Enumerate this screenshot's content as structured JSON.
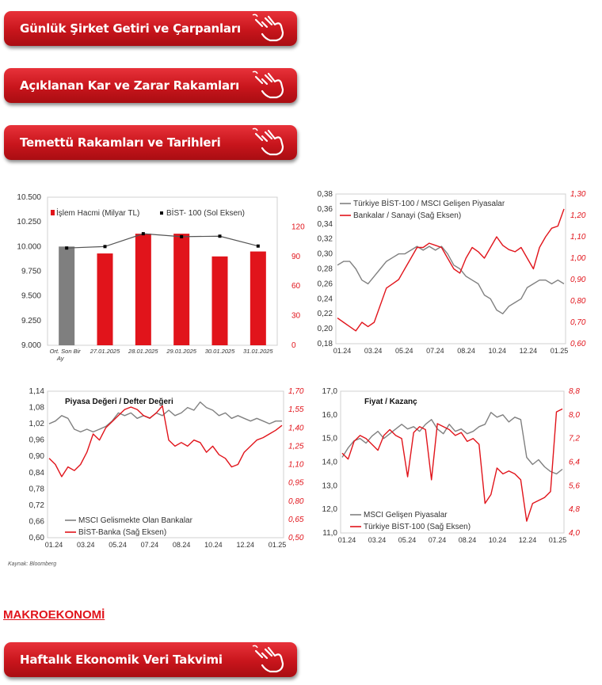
{
  "buttons": [
    {
      "label": "Günlük Şirket Getiri ve Çarpanları",
      "icon": "pointing-hand-icon"
    },
    {
      "label": "Açıklanan Kar ve Zarar Rakamları",
      "icon": "pointing-hand-icon"
    },
    {
      "label": "Temettü Rakamları ve Tarihleri",
      "icon": "pointing-hand-icon"
    },
    {
      "label": "Haftalık Ekonomik Veri Takvimi",
      "icon": "pointing-hand-icon"
    }
  ],
  "section_title": "MAKROEKONOMİ",
  "source_note": "Kaynak: Bloomberg",
  "colors": {
    "red": "#e1141b",
    "gray": "#808080",
    "dark": "#333333"
  },
  "chart_data": [
    {
      "type": "bar",
      "categories": [
        "Ort. Son Bir Ay",
        "27.01.2025",
        "28.01.2025",
        "29.01.2025",
        "30.01.2025",
        "31.01.2025"
      ],
      "series": [
        {
          "name": "İşlem Hacmi (Milyar TL)",
          "axis": "right",
          "values": [
            100,
            93,
            113,
            113,
            90,
            95
          ]
        },
        {
          "name": "BİST- 100 (Sol Eksen)",
          "axis": "left",
          "values": [
            9985,
            10000,
            10130,
            10100,
            10105,
            10005
          ]
        }
      ],
      "ylim_left": [
        9000,
        10500
      ],
      "yticks_left": [
        "10.500",
        "10.250",
        "10.000",
        "9.750",
        "9.500",
        "9.250",
        "9.000"
      ],
      "ylim_right": [
        0,
        150
      ],
      "yticks_right": [
        "120",
        "90",
        "60",
        "30",
        "0"
      ]
    },
    {
      "type": "line",
      "x_ticks": [
        "01.24",
        "03.24",
        "05.24",
        "07.24",
        "08.24",
        "10.24",
        "12.24",
        "01.25"
      ],
      "ylim_left": [
        0.18,
        0.38
      ],
      "yticks_left": [
        "0,38",
        "0,36",
        "0,34",
        "0,32",
        "0,30",
        "0,28",
        "0,26",
        "0,24",
        "0,22",
        "0,20",
        "0,18"
      ],
      "ylim_right": [
        0.6,
        1.3
      ],
      "yticks_right": [
        "1,30",
        "1,20",
        "1,10",
        "1,00",
        "0,90",
        "0,80",
        "0,70",
        "0,60"
      ],
      "series": [
        {
          "name": "Türkiye BİST-100 / MSCI Gelişen Piyasalar",
          "axis": "left",
          "values": [
            0.285,
            0.29,
            0.29,
            0.28,
            0.265,
            0.26,
            0.27,
            0.28,
            0.29,
            0.295,
            0.3,
            0.3,
            0.305,
            0.31,
            0.305,
            0.31,
            0.305,
            0.31,
            0.3,
            0.285,
            0.28,
            0.27,
            0.265,
            0.26,
            0.245,
            0.24,
            0.225,
            0.22,
            0.23,
            0.235,
            0.24,
            0.255,
            0.26,
            0.265,
            0.265,
            0.26,
            0.265,
            0.26
          ]
        },
        {
          "name": "Bankalar / Sanayi (Sağ Eksen)",
          "axis": "right",
          "values": [
            0.72,
            0.7,
            0.68,
            0.66,
            0.7,
            0.68,
            0.7,
            0.78,
            0.86,
            0.88,
            0.9,
            0.95,
            1.0,
            1.05,
            1.05,
            1.07,
            1.06,
            1.05,
            1.0,
            0.95,
            0.93,
            1.0,
            1.05,
            1.03,
            1.0,
            1.05,
            1.1,
            1.06,
            1.04,
            1.03,
            1.05,
            1.0,
            0.95,
            1.05,
            1.1,
            1.14,
            1.15,
            1.23
          ]
        }
      ]
    },
    {
      "type": "line",
      "title": "Piyasa Değeri / Defter Değeri",
      "x_ticks": [
        "01.24",
        "03.24",
        "05.24",
        "07.24",
        "08.24",
        "10.24",
        "12.24",
        "01.25"
      ],
      "ylim_left": [
        0.6,
        1.14
      ],
      "yticks_left": [
        "1,14",
        "1,08",
        "1,02",
        "0,96",
        "0,90",
        "0,84",
        "0,78",
        "0,72",
        "0,66",
        "0,60"
      ],
      "ylim_right": [
        0.5,
        1.7
      ],
      "yticks_right": [
        "1,70",
        "1,55",
        "1,40",
        "1,25",
        "1,10",
        "0,95",
        "0,80",
        "0,65",
        "0,50"
      ],
      "series": [
        {
          "name": "MSCI Gelismekte Olan Bankalar",
          "axis": "left",
          "values": [
            1.02,
            1.03,
            1.05,
            1.04,
            1.0,
            0.99,
            1.0,
            0.99,
            1.0,
            1.01,
            1.03,
            1.06,
            1.05,
            1.06,
            1.04,
            1.05,
            1.04,
            1.06,
            1.05,
            1.07,
            1.05,
            1.06,
            1.08,
            1.07,
            1.1,
            1.08,
            1.07,
            1.05,
            1.06,
            1.04,
            1.05,
            1.04,
            1.03,
            1.04,
            1.03,
            1.02,
            1.03,
            1.03
          ]
        },
        {
          "name": "BİST-Banka (Sağ Eksen)",
          "axis": "right",
          "values": [
            1.15,
            1.1,
            1.0,
            1.08,
            1.05,
            1.1,
            1.2,
            1.35,
            1.3,
            1.4,
            1.45,
            1.5,
            1.55,
            1.57,
            1.55,
            1.5,
            1.48,
            1.52,
            1.58,
            1.3,
            1.25,
            1.28,
            1.25,
            1.3,
            1.28,
            1.2,
            1.25,
            1.18,
            1.15,
            1.08,
            1.1,
            1.2,
            1.25,
            1.3,
            1.32,
            1.35,
            1.38,
            1.42
          ]
        }
      ]
    },
    {
      "type": "line",
      "title": "Fiyat / Kazanç",
      "x_ticks": [
        "01.24",
        "03.24",
        "05.24",
        "07.24",
        "08.24",
        "10.24",
        "12.24",
        "01.25"
      ],
      "ylim_left": [
        11.0,
        17.0
      ],
      "yticks_left": [
        "17,0",
        "16,0",
        "15,0",
        "14,0",
        "13,0",
        "12,0",
        "11,0"
      ],
      "ylim_right": [
        4.0,
        8.8
      ],
      "yticks_right": [
        "8,8",
        "8,0",
        "7,2",
        "6,4",
        "5,6",
        "4,8",
        "4,0"
      ],
      "series": [
        {
          "name": "MSCI Gelişen Piyasalar",
          "axis": "left",
          "values": [
            14.2,
            14.6,
            14.9,
            15.0,
            14.8,
            15.1,
            15.3,
            15.0,
            15.2,
            15.4,
            15.6,
            15.4,
            15.5,
            15.3,
            15.6,
            15.8,
            15.4,
            15.2,
            15.6,
            15.3,
            15.4,
            15.2,
            15.3,
            15.5,
            15.6,
            16.1,
            15.9,
            16.0,
            15.7,
            15.9,
            15.8,
            14.2,
            13.9,
            14.1,
            13.8,
            13.6,
            13.5,
            13.7
          ]
        },
        {
          "name": "Türkiye BİST-100 (Sağ Eksen)",
          "axis": "right",
          "values": [
            6.7,
            6.5,
            7.1,
            7.3,
            7.2,
            7.0,
            6.8,
            7.3,
            7.5,
            7.3,
            7.2,
            5.9,
            7.4,
            7.6,
            7.5,
            5.8,
            7.7,
            7.6,
            7.5,
            7.3,
            7.4,
            7.1,
            7.2,
            7.0,
            5.0,
            5.3,
            6.2,
            6.0,
            6.1,
            6.0,
            5.8,
            4.4,
            5.0,
            5.1,
            5.2,
            5.4,
            8.1,
            8.2
          ]
        }
      ]
    }
  ]
}
